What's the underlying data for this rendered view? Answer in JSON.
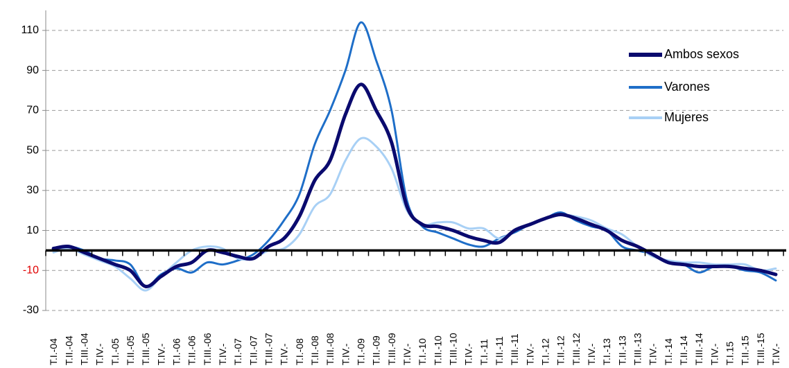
{
  "chart_data": {
    "type": "line",
    "title": "",
    "xlabel": "",
    "ylabel": "",
    "ylim": [
      -30,
      120
    ],
    "yticks": [
      -30,
      -10,
      10,
      30,
      50,
      70,
      90,
      110
    ],
    "ytick_colors": {
      "-30": "#000000",
      "-10": "#e00000",
      "10": "#000000",
      "30": "#000000",
      "50": "#000000",
      "70": "#000000",
      "90": "#000000",
      "110": "#000000"
    },
    "grid": "horizontal dashed",
    "legend_position": "top-right",
    "categories": [
      "T.I.-04",
      "T.II.-04",
      "T.III.-04",
      "T.IV.-",
      "T.I.-05",
      "T.II.-05",
      "T.III.-05",
      "T.IV.-",
      "T.I.-06",
      "T.II.-06",
      "T.III.-06",
      "T.IV.-",
      "T.I.-07",
      "T.II.-07",
      "T.III.-07",
      "T.IV.-",
      "T.I.-08",
      "T.II.-08",
      "T.III.-08",
      "T.IV.-",
      "T.I.-09",
      "T.II.-09",
      "T.III.-09",
      "T.IV.-",
      "T.I.-10",
      "T.II.-10",
      "T.III.-10",
      "T.IV.-",
      "T.I.-11",
      "T.II.-11",
      "T.III.-11",
      "T.IV.-",
      "T.I.-12",
      "T.II.-12",
      "T.III.-12",
      "T.IV.-",
      "T.I.-13",
      "T.II.-13",
      "T.III.-13",
      "T.IV.-",
      "T.I.-14",
      "T.II.-14",
      "T.III.-14",
      "T.IV.-",
      "T.I.15",
      "T.II.-15",
      "T.III.-15",
      "T.IV.-"
    ],
    "series": [
      {
        "name": "Ambos sexos",
        "color": "#0a0a6e",
        "width": 5,
        "values": [
          1,
          2,
          -1,
          -4,
          -7,
          -10,
          -18,
          -13,
          -8,
          -6,
          0,
          -1,
          -3,
          -4,
          2,
          6,
          17,
          35,
          45,
          68,
          83,
          70,
          54,
          22,
          13,
          12,
          10,
          7,
          5,
          4,
          10,
          13,
          16,
          18,
          16,
          13,
          10,
          5,
          2,
          -2,
          -6,
          -7,
          -8,
          -8,
          -8,
          -9,
          -10,
          -12
        ]
      },
      {
        "name": "Varones",
        "color": "#1e6ec8",
        "width": 3,
        "values": [
          1,
          2,
          0,
          -4,
          -5,
          -7,
          -18,
          -12,
          -9,
          -11,
          -6,
          -7,
          -5,
          -2,
          5,
          15,
          28,
          53,
          70,
          90,
          114,
          95,
          70,
          25,
          12,
          9,
          6,
          3,
          2,
          6,
          9,
          13,
          16,
          19,
          15,
          12,
          10,
          2,
          0,
          -2,
          -6,
          -7,
          -11,
          -8,
          -8,
          -10,
          -11,
          -15
        ]
      },
      {
        "name": "Mujeres",
        "color": "#a8d0f5",
        "width": 3,
        "values": [
          -1,
          1,
          -2,
          -5,
          -8,
          -14,
          -20,
          -13,
          -6,
          0,
          2,
          1,
          -4,
          -4,
          0,
          1,
          8,
          22,
          28,
          45,
          56,
          52,
          41,
          20,
          13,
          14,
          14,
          11,
          11,
          6,
          10,
          13,
          16,
          18,
          17,
          15,
          11,
          8,
          2,
          -3,
          -5,
          -6,
          -6,
          -7,
          -7,
          -7,
          -10,
          -9
        ]
      }
    ]
  }
}
